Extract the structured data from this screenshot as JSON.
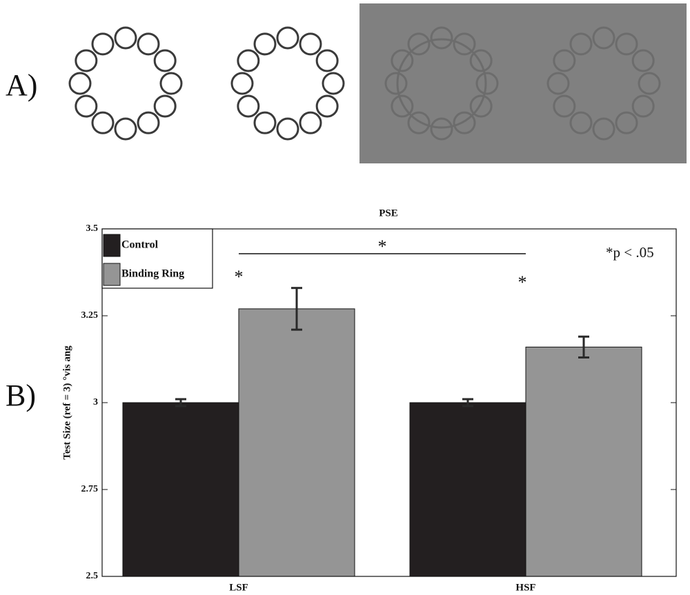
{
  "panel_labels": [
    "A)",
    "B)"
  ],
  "chart_data": {
    "type": "bar",
    "title": "PSE",
    "y_label": "Test Size (ref = 3) °vis ang",
    "categories": [
      "LSF",
      "HSF"
    ],
    "series": [
      {
        "name": "Control",
        "color": "#231f20",
        "values": [
          3.0,
          3.0
        ],
        "errors": [
          0.01,
          0.01
        ]
      },
      {
        "name": "Binding Ring",
        "color": "#959595",
        "values": [
          3.27,
          3.16
        ],
        "errors": [
          0.06,
          0.03
        ]
      }
    ],
    "ylim": [
      2.5,
      3.5
    ],
    "yticks": [
      2.5,
      2.75,
      3,
      3.25,
      3.5
    ],
    "legend": "upper left",
    "annotations": {
      "sig_lsf": "*",
      "sig_hsf": "*",
      "sig_between": "*",
      "note": "*p < .05"
    }
  }
}
